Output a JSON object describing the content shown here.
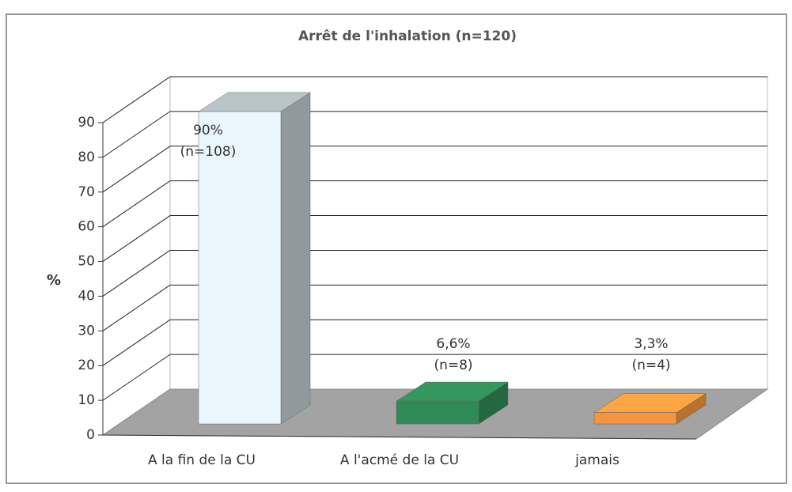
{
  "chart_data": {
    "type": "bar3d",
    "title": "Arrêt de l'inhalation (n=120)",
    "y_label": "%",
    "categories": [
      "A la fin de la CU",
      "A l'acmé de la CU",
      "jamais"
    ],
    "values": [
      90,
      6.6,
      3.3
    ],
    "value_labels": [
      "90%",
      "6,6%",
      "3,3%"
    ],
    "n_labels": [
      "(n=108)",
      "(n=8)",
      "(n=4)"
    ],
    "colors": [
      "#e9f6fb",
      "#2f8a55",
      "#f5963e"
    ],
    "ylim": [
      0,
      90
    ],
    "yticks": [
      0,
      10,
      20,
      30,
      40,
      50,
      60,
      70,
      80,
      90
    ],
    "grid": true
  }
}
